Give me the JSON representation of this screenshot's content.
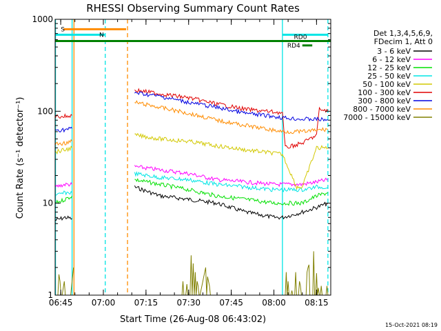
{
  "chart_data": {
    "type": "line",
    "title": "RHESSI Observing Summary Count Rates",
    "xlabel": "Start Time (26-Aug-08 06:43:02)",
    "ylabel": "Count Rate (s⁻¹ detector⁻¹)",
    "yscale": "log",
    "ylim": [
      1,
      1000
    ],
    "xlim": [
      "06:43:02",
      "08:20:00"
    ],
    "y_ticks": [
      "1",
      "10",
      "100",
      "1000"
    ],
    "x_ticks": [
      "06:45",
      "07:00",
      "07:15",
      "07:30",
      "07:45",
      "08:00",
      "08:15"
    ],
    "legend_header": [
      "Det 1,3,4,5,6,9,",
      "FDecim 1, Att 0"
    ],
    "legend_position": "right",
    "timestamp": "15-Oct-2021 08:19",
    "flag_bars": [
      {
        "label": "S",
        "color": "#ff8c00",
        "start": "06:46:00",
        "end": "07:08:00",
        "y": 780
      },
      {
        "label": "N",
        "color": "#00e5e5",
        "start": "06:43:02",
        "end": "07:00:30",
        "y": 680
      },
      {
        "label": "",
        "color": "#00e5e5",
        "start": "08:03:00",
        "end": "08:19:00",
        "y": 680
      },
      {
        "label": "RD0",
        "color": "#008000",
        "start": "06:43:02",
        "end": "08:20:00",
        "y": 580
      },
      {
        "label": "RD4",
        "color": "#008000",
        "start": "08:10:00",
        "end": "08:13:30",
        "y": 520
      }
    ],
    "vlines": [
      {
        "time": "06:43:10",
        "color": "#00e5e5",
        "style": "solid"
      },
      {
        "time": "06:49:00",
        "color": "#00e5e5",
        "style": "solid"
      },
      {
        "time": "06:49:40",
        "color": "#ff8c00",
        "style": "solid"
      },
      {
        "time": "07:00:40",
        "color": "#00e5e5",
        "style": "dashed"
      },
      {
        "time": "07:08:30",
        "color": "#ff8c00",
        "style": "dashed"
      },
      {
        "time": "08:03:00",
        "color": "#00e5e5",
        "style": "solid"
      },
      {
        "time": "08:19:00",
        "color": "#00e5e5",
        "style": "dashed"
      }
    ],
    "series": [
      {
        "name": "3 - 6 keV",
        "color": "#000000",
        "segments": [
          {
            "x": [
              "06:43:02",
              "06:46:30",
              "06:49:00"
            ],
            "y": [
              6.5,
              7.0,
              6.8
            ]
          },
          {
            "x": [
              "07:11:00",
              "07:20:00",
              "07:30:00",
              "07:40:00",
              "07:50:00",
              "08:00:00",
              "08:03:00",
              "08:10:00",
              "08:15:00",
              "08:19:00"
            ],
            "y": [
              15,
              12,
              11,
              10,
              8,
              7,
              7,
              8,
              9,
              10
            ]
          }
        ]
      },
      {
        "name": "6 - 12 keV",
        "color": "#ff00ff",
        "segments": [
          {
            "x": [
              "06:43:02",
              "06:46:30",
              "06:49:00"
            ],
            "y": [
              15,
              16,
              16
            ]
          },
          {
            "x": [
              "07:11:00",
              "07:20:00",
              "07:30:00",
              "07:40:00",
              "07:50:00",
              "08:00:00",
              "08:03:00",
              "08:10:00",
              "08:15:00",
              "08:19:00"
            ],
            "y": [
              25,
              23,
              21,
              18,
              17,
              16,
              16,
              16,
              17,
              18
            ]
          }
        ]
      },
      {
        "name": "12 - 25 keV",
        "color": "#00e000",
        "segments": [
          {
            "x": [
              "06:43:02",
              "06:46:30",
              "06:49:00"
            ],
            "y": [
              10,
              11,
              12
            ]
          },
          {
            "x": [
              "07:11:00",
              "07:20:00",
              "07:30:00",
              "07:40:00",
              "07:50:00",
              "08:00:00",
              "08:03:00",
              "08:10:00",
              "08:15:00",
              "08:19:00"
            ],
            "y": [
              18,
              16,
              14,
              12,
              11,
              10,
              10,
              10,
              12,
              13
            ]
          }
        ]
      },
      {
        "name": "25 - 50 keV",
        "color": "#00e5e5",
        "segments": [
          {
            "x": [
              "06:43:02",
              "06:46:30",
              "06:49:00"
            ],
            "y": [
              12,
              13,
              13
            ]
          },
          {
            "x": [
              "07:11:00",
              "07:20:00",
              "07:30:00",
              "07:40:00",
              "07:50:00",
              "08:00:00",
              "08:03:00",
              "08:10:00",
              "08:15:00",
              "08:19:00"
            ],
            "y": [
              21,
              19,
              18,
              16,
              15,
              14,
              14,
              14,
              15,
              15
            ]
          }
        ]
      },
      {
        "name": "50 - 100 keV",
        "color": "#d2c800",
        "segments": [
          {
            "x": [
              "06:43:02",
              "06:46:30",
              "06:49:00"
            ],
            "y": [
              36,
              38,
              40
            ]
          },
          {
            "x": [
              "07:11:00",
              "07:20:00",
              "07:30:00",
              "07:40:00",
              "07:50:00",
              "08:00:00",
              "08:03:00",
              "08:08:00",
              "08:10:00",
              "08:15:00",
              "08:19:00"
            ],
            "y": [
              55,
              50,
              47,
              42,
              38,
              35,
              34,
              15,
              15,
              40,
              40
            ]
          }
        ]
      },
      {
        "name": "100 - 300 keV",
        "color": "#e00000",
        "segments": [
          {
            "x": [
              "06:43:02",
              "06:46:30",
              "06:49:00"
            ],
            "y": [
              88,
              88,
              90
            ]
          },
          {
            "x": [
              "07:11:00",
              "07:20:00",
              "07:30:00",
              "07:40:00",
              "07:50:00",
              "08:00:00",
              "08:03:00",
              "08:04:00",
              "08:10:00",
              "08:15:00",
              "08:16:00",
              "08:19:00"
            ],
            "y": [
              170,
              155,
              140,
              120,
              105,
              98,
              96,
              40,
              45,
              55,
              105,
              100
            ]
          }
        ]
      },
      {
        "name": "300 - 800 keV",
        "color": "#0000e0",
        "segments": [
          {
            "x": [
              "06:43:02",
              "06:46:30",
              "06:49:00"
            ],
            "y": [
              62,
              63,
              65
            ]
          },
          {
            "x": [
              "07:11:00",
              "07:20:00",
              "07:30:00",
              "07:40:00",
              "07:50:00",
              "08:00:00",
              "08:03:00",
              "08:10:00",
              "08:15:00",
              "08:19:00"
            ],
            "y": [
              160,
              145,
              125,
              110,
              95,
              88,
              85,
              82,
              82,
              80
            ]
          }
        ]
      },
      {
        "name": "800 - 7000 keV",
        "color": "#ff8c00",
        "segments": [
          {
            "x": [
              "06:43:02",
              "06:46:30",
              "06:49:00"
            ],
            "y": [
              44,
              45,
              47
            ]
          },
          {
            "x": [
              "07:11:00",
              "07:20:00",
              "07:30:00",
              "07:40:00",
              "07:50:00",
              "08:00:00",
              "08:03:00",
              "08:10:00",
              "08:15:00",
              "08:19:00"
            ],
            "y": [
              125,
              110,
              95,
              80,
              70,
              62,
              60,
              60,
              62,
              64
            ]
          }
        ]
      },
      {
        "name": "7000 - 15000 keV",
        "color": "#808000",
        "segments": [
          {
            "x": [
              "06:43:02",
              "06:44:00",
              "06:45:30",
              "06:47:00",
              "06:48:30",
              "06:49:30"
            ],
            "y": [
              1,
              2,
              1,
              2,
              1,
              2
            ]
          },
          {
            "x": [
              "07:25:00",
              "07:27:00",
              "07:29:00",
              "07:30:30",
              "07:32:00",
              "07:34:00",
              "07:36:00",
              "07:38:00"
            ],
            "y": [
              1,
              2,
              1,
              3,
              2,
              1,
              2,
              1
            ]
          },
          {
            "x": [
              "08:04:00",
              "08:06:00",
              "08:08:00",
              "08:10:00",
              "08:12:00",
              "08:14:00",
              "08:16:00",
              "08:18:00",
              "08:19:00"
            ],
            "y": [
              2,
              1,
              2,
              1,
              2,
              3,
              1,
              2,
              1
            ]
          }
        ]
      }
    ]
  }
}
